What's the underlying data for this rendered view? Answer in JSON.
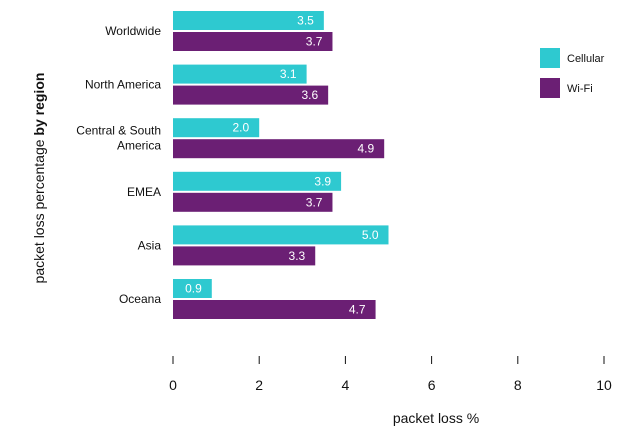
{
  "chart_data": {
    "type": "bar",
    "orientation": "horizontal",
    "categories": [
      "Worldwide",
      "North America",
      "Central & South America",
      "EMEA",
      "Asia",
      "Oceana"
    ],
    "category_lines": [
      [
        "Worldwide"
      ],
      [
        "North America"
      ],
      [
        "Central & South",
        "America"
      ],
      [
        "EMEA"
      ],
      [
        "Asia"
      ],
      [
        "Oceana"
      ]
    ],
    "series": [
      {
        "name": "Cellular",
        "color": "#2ec9d0",
        "values": [
          3.5,
          3.1,
          2.0,
          3.9,
          5.0,
          0.9
        ]
      },
      {
        "name": "Wi-Fi",
        "color": "#6b1f74",
        "values": [
          3.7,
          3.6,
          4.9,
          3.7,
          3.3,
          4.7
        ]
      }
    ],
    "xlabel": "packet loss %",
    "ylabel": {
      "plain": "packet loss percentage ",
      "bold": "by region"
    },
    "xlim": [
      0,
      10
    ],
    "xticks": [
      "0",
      "2",
      "4",
      "6",
      "8",
      "10"
    ],
    "grid": false,
    "legend_position": "right"
  }
}
